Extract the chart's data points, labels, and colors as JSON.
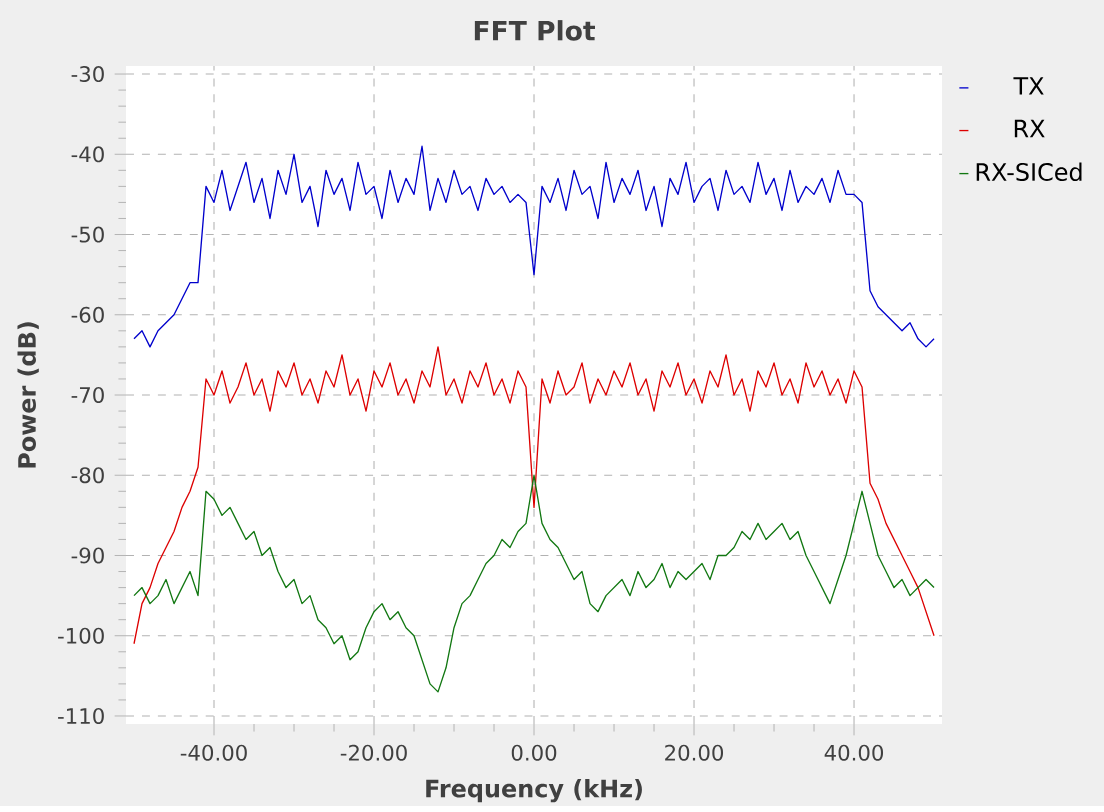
{
  "chart_data": {
    "type": "line",
    "title": "FFT Plot",
    "xlabel": "Frequency (kHz)",
    "ylabel": "Power (dB)",
    "x": [
      -50,
      -49,
      -48,
      -47,
      -46,
      -45,
      -44,
      -43,
      -42,
      -41,
      -40,
      -39,
      -38,
      -37,
      -36,
      -35,
      -34,
      -33,
      -32,
      -31,
      -30,
      -29,
      -28,
      -27,
      -26,
      -25,
      -24,
      -23,
      -22,
      -21,
      -20,
      -19,
      -18,
      -17,
      -16,
      -15,
      -14,
      -13,
      -12,
      -11,
      -10,
      -9,
      -8,
      -7,
      -6,
      -5,
      -4,
      -3,
      -2,
      -1,
      0,
      1,
      2,
      3,
      4,
      5,
      6,
      7,
      8,
      9,
      10,
      11,
      12,
      13,
      14,
      15,
      16,
      17,
      18,
      19,
      20,
      21,
      22,
      23,
      24,
      25,
      26,
      27,
      28,
      29,
      30,
      31,
      32,
      33,
      34,
      35,
      36,
      37,
      38,
      39,
      40,
      41,
      42,
      43,
      44,
      45,
      46,
      47,
      48,
      49,
      50
    ],
    "series": [
      {
        "name": "TX",
        "color": "#0000cc",
        "values": [
          -63,
          -62,
          -64,
          -62,
          -61,
          -60,
          -58,
          -56,
          -56,
          -44,
          -46,
          -42,
          -47,
          -44,
          -41,
          -46,
          -43,
          -48,
          -42,
          -45,
          -40,
          -46,
          -44,
          -49,
          -42,
          -45,
          -43,
          -47,
          -41,
          -45,
          -44,
          -48,
          -42,
          -46,
          -43,
          -45,
          -39,
          -47,
          -43,
          -46,
          -42,
          -45,
          -44,
          -47,
          -43,
          -45,
          -44,
          -46,
          -45,
          -46,
          -55,
          -44,
          -46,
          -43,
          -47,
          -42,
          -45,
          -44,
          -48,
          -41,
          -46,
          -43,
          -45,
          -42,
          -47,
          -44,
          -49,
          -43,
          -45,
          -41,
          -46,
          -44,
          -43,
          -47,
          -42,
          -45,
          -44,
          -46,
          -41,
          -45,
          -43,
          -47,
          -42,
          -46,
          -44,
          -45,
          -43,
          -46,
          -42,
          -45,
          -45,
          -46,
          -57,
          -59,
          -60,
          -61,
          -62,
          -61,
          -63,
          -64,
          -63
        ]
      },
      {
        "name": "RX",
        "color": "#dd0000",
        "values": [
          -101,
          -96,
          -94,
          -91,
          -89,
          -87,
          -84,
          -82,
          -79,
          -68,
          -70,
          -67,
          -71,
          -69,
          -66,
          -70,
          -68,
          -72,
          -67,
          -69,
          -66,
          -70,
          -68,
          -71,
          -67,
          -69,
          -65,
          -70,
          -68,
          -72,
          -67,
          -69,
          -66,
          -70,
          -68,
          -71,
          -67,
          -69,
          -64,
          -70,
          -68,
          -71,
          -67,
          -69,
          -66,
          -70,
          -68,
          -71,
          -67,
          -69,
          -84,
          -68,
          -71,
          -67,
          -70,
          -69,
          -66,
          -71,
          -68,
          -70,
          -67,
          -69,
          -66,
          -70,
          -68,
          -72,
          -67,
          -69,
          -66,
          -70,
          -68,
          -71,
          -67,
          -69,
          -65,
          -70,
          -68,
          -72,
          -67,
          -69,
          -66,
          -70,
          -68,
          -71,
          -66,
          -69,
          -67,
          -70,
          -68,
          -71,
          -67,
          -69,
          -81,
          -83,
          -86,
          -88,
          -90,
          -92,
          -94,
          -97,
          -100
        ]
      },
      {
        "name": "RX-SICed",
        "color": "#117711",
        "values": [
          -95,
          -94,
          -96,
          -95,
          -93,
          -96,
          -94,
          -92,
          -95,
          -82,
          -83,
          -85,
          -84,
          -86,
          -88,
          -87,
          -90,
          -89,
          -92,
          -94,
          -93,
          -96,
          -95,
          -98,
          -99,
          -101,
          -100,
          -103,
          -102,
          -99,
          -97,
          -96,
          -98,
          -97,
          -99,
          -100,
          -103,
          -106,
          -107,
          -104,
          -99,
          -96,
          -95,
          -93,
          -91,
          -90,
          -88,
          -89,
          -87,
          -86,
          -80,
          -86,
          -88,
          -89,
          -91,
          -93,
          -92,
          -96,
          -97,
          -95,
          -94,
          -93,
          -95,
          -92,
          -94,
          -93,
          -91,
          -94,
          -92,
          -93,
          -92,
          -91,
          -93,
          -90,
          -90,
          -89,
          -87,
          -88,
          -86,
          -88,
          -87,
          -86,
          -88,
          -87,
          -90,
          -92,
          -94,
          -96,
          -93,
          -90,
          -86,
          -82,
          -86,
          -90,
          -92,
          -94,
          -93,
          -95,
          -94,
          -93,
          -94
        ]
      }
    ],
    "xlim": [
      -51,
      51
    ],
    "ylim": [
      -111,
      -29
    ],
    "xticks": [
      {
        "value": -40,
        "label": "-40.00"
      },
      {
        "value": -20,
        "label": "-20.00"
      },
      {
        "value": 0,
        "label": "0.00"
      },
      {
        "value": 20,
        "label": "20.00"
      },
      {
        "value": 40,
        "label": "40.00"
      }
    ],
    "yticks": [
      -110,
      -100,
      -90,
      -80,
      -70,
      -60,
      -50,
      -40,
      -30
    ],
    "grid": true,
    "legend": "top right"
  }
}
